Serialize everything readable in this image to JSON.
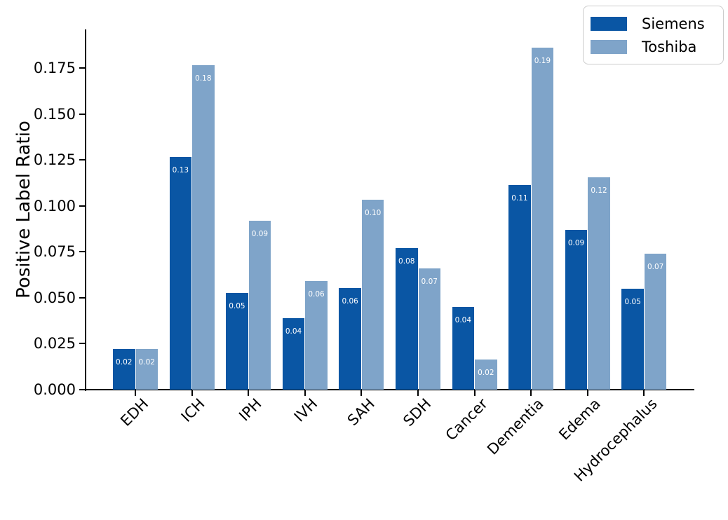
{
  "chart_data": {
    "type": "bar",
    "title": "",
    "xlabel": "",
    "ylabel": "Positive Label Ratio",
    "grid": false,
    "legend_position": "upper right",
    "categories": [
      "EDH",
      "ICH",
      "IPH",
      "IVH",
      "SAH",
      "SDH",
      "Cancer",
      "Dementia",
      "Edema",
      "Hydrocephalus"
    ],
    "series": [
      {
        "name": "Siemens",
        "color": "#0a56a4",
        "values": [
          0.022,
          0.1265,
          0.0528,
          0.039,
          0.0552,
          0.0769,
          0.0449,
          0.1115,
          0.0871,
          0.0548
        ],
        "bar_labels": [
          "0.02",
          "0.13",
          "0.05",
          "0.04",
          "0.06",
          "0.08",
          "0.04",
          "0.11",
          "0.09",
          "0.05"
        ]
      },
      {
        "name": "Toshiba",
        "color": "#7fa4c9",
        "values": [
          0.022,
          0.1766,
          0.092,
          0.059,
          0.1034,
          0.0658,
          0.0164,
          0.1861,
          0.1157,
          0.0738
        ],
        "bar_labels": [
          "0.02",
          "0.18",
          "0.09",
          "0.06",
          "0.10",
          "0.07",
          "0.02",
          "0.19",
          "0.12",
          "0.07"
        ]
      }
    ],
    "y_ticks": [
      "0.000",
      "0.025",
      "0.050",
      "0.075",
      "0.100",
      "0.125",
      "0.150",
      "0.175"
    ],
    "ylim": [
      0,
      0.196
    ]
  }
}
